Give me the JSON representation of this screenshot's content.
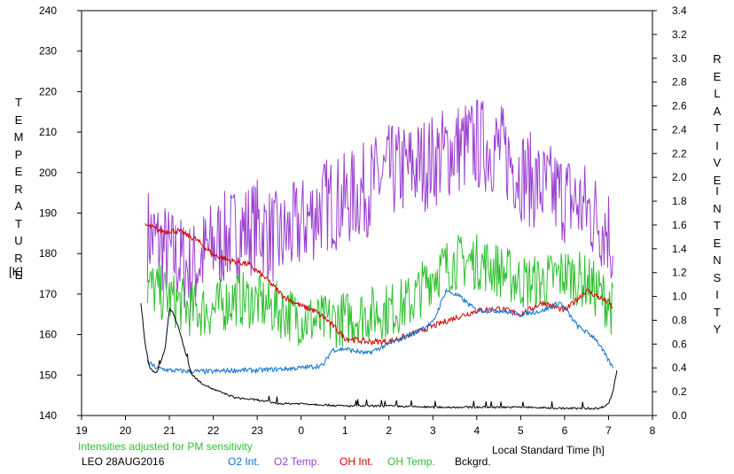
{
  "chart_data": {
    "type": "line",
    "y_left_label_letters": [
      "T",
      "E",
      "M",
      "P",
      "E",
      "R",
      "A",
      "T",
      "U",
      "R",
      "E"
    ],
    "y_left_unit": "[K]",
    "y_right_label_word1": [
      "R",
      "E",
      "L",
      "A",
      "T",
      "I",
      "V",
      "E"
    ],
    "y_right_label_word2": [
      "I",
      "N",
      "T",
      "E",
      "N",
      "S",
      "I",
      "T",
      "Y"
    ],
    "xlabel": "Local Standard Time [h]",
    "x_ticks": [
      "19",
      "20",
      "21",
      "22",
      "23",
      "0",
      "1",
      "2",
      "3",
      "4",
      "5",
      "6",
      "7",
      "8"
    ],
    "y_left_ticks": [
      "140",
      "150",
      "160",
      "170",
      "180",
      "190",
      "200",
      "210",
      "220",
      "230",
      "240"
    ],
    "y_right_ticks": [
      "0.0",
      "0.2",
      "0.4",
      "0.6",
      "0.8",
      "1.0",
      "1.2",
      "1.4",
      "1.6",
      "1.8",
      "2.0",
      "2.2",
      "2.4",
      "2.6",
      "2.8",
      "3.0",
      "3.2",
      "3.4"
    ],
    "xlim": [
      19,
      32
    ],
    "ylim_left": [
      140,
      240
    ],
    "ylim_right": [
      0.0,
      3.4
    ],
    "note": "Intensities adjusted for PM sensitivity",
    "site_date": "LEO 28AUG2016",
    "legend": [
      "O2 Int.",
      "O2 Temp.",
      "OH Int.",
      "OH Temp.",
      "Bckgrd."
    ],
    "colors": {
      "o2_int": "#0a6ed0",
      "o2_temp": "#9a40d0",
      "oh_int": "#d00000",
      "oh_temp": "#30c030",
      "bckgrd": "#000000",
      "note": "#30c030"
    },
    "series": [
      {
        "name": "O2 Temp.",
        "axis": "left",
        "noise": 12,
        "x": [
          20.5,
          21.0,
          21.5,
          22.0,
          22.5,
          23.0,
          23.5,
          24.0,
          24.5,
          25.0,
          25.5,
          26.0,
          26.5,
          27.0,
          27.5,
          28.0,
          28.5,
          29.0,
          29.5,
          30.0,
          30.5,
          31.0,
          31.1
        ],
        "y": [
          185,
          180,
          176,
          182,
          185,
          187,
          183,
          187,
          192,
          193,
          196,
          200,
          201,
          203,
          206,
          207,
          206,
          200,
          196,
          194,
          191,
          186,
          181
        ]
      },
      {
        "name": "OH Temp.",
        "axis": "left",
        "noise": 7,
        "x": [
          20.5,
          21.0,
          21.5,
          22.0,
          22.5,
          23.0,
          23.5,
          24.0,
          24.5,
          25.0,
          25.5,
          26.0,
          26.5,
          27.0,
          27.5,
          28.0,
          28.5,
          29.0,
          29.5,
          30.0,
          30.5,
          31.0,
          31.1
        ],
        "y": [
          172,
          169,
          166,
          166,
          169,
          168,
          166,
          164,
          163,
          164,
          165,
          166,
          168,
          175,
          178,
          178,
          176,
          173,
          173,
          175,
          173,
          168,
          166
        ]
      },
      {
        "name": "OH Int.",
        "axis": "right",
        "noise": 0.025,
        "x": [
          20.45,
          20.8,
          21.2,
          21.6,
          22.0,
          22.4,
          22.8,
          23.2,
          23.6,
          24.0,
          24.3,
          24.6,
          25.0,
          25.5,
          26.0,
          26.5,
          27.0,
          27.5,
          28.0,
          28.5,
          29.0,
          29.5,
          30.0,
          30.5,
          31.0,
          31.1
        ],
        "y": [
          1.6,
          1.55,
          1.55,
          1.48,
          1.35,
          1.3,
          1.27,
          1.15,
          1.0,
          0.92,
          0.88,
          0.8,
          0.65,
          0.62,
          0.62,
          0.68,
          0.75,
          0.82,
          0.88,
          0.9,
          0.85,
          0.95,
          0.88,
          1.05,
          0.95,
          0.9
        ]
      },
      {
        "name": "O2 Int.",
        "axis": "right",
        "noise": 0.02,
        "x": [
          20.5,
          20.7,
          21.0,
          21.5,
          22.0,
          22.5,
          23.0,
          23.5,
          24.0,
          24.5,
          24.7,
          25.0,
          25.5,
          26.0,
          26.5,
          27.0,
          27.3,
          27.6,
          28.0,
          28.5,
          29.0,
          29.5,
          29.9,
          30.3,
          30.7,
          31.1
        ],
        "y": [
          0.45,
          0.4,
          0.38,
          0.37,
          0.37,
          0.38,
          0.38,
          0.39,
          0.4,
          0.42,
          0.55,
          0.56,
          0.52,
          0.6,
          0.68,
          0.78,
          1.05,
          1.0,
          0.88,
          0.88,
          0.85,
          0.88,
          0.95,
          0.75,
          0.65,
          0.4
        ]
      },
      {
        "name": "Bckgrd.",
        "axis": "right",
        "noise": 0.008,
        "x": [
          20.35,
          20.45,
          20.55,
          20.7,
          20.8,
          20.9,
          21.0,
          21.1,
          21.2,
          21.35,
          21.5,
          21.7,
          22.0,
          22.5,
          23.0,
          23.5,
          24.0,
          25.0,
          26.0,
          27.0,
          28.0,
          29.0,
          30.0,
          30.8,
          31.0,
          31.1,
          31.2
        ],
        "y": [
          0.95,
          0.6,
          0.4,
          0.35,
          0.45,
          0.55,
          0.9,
          0.85,
          0.75,
          0.55,
          0.35,
          0.28,
          0.22,
          0.15,
          0.13,
          0.1,
          0.1,
          0.08,
          0.08,
          0.07,
          0.07,
          0.07,
          0.06,
          0.06,
          0.1,
          0.2,
          0.4
        ]
      }
    ]
  }
}
